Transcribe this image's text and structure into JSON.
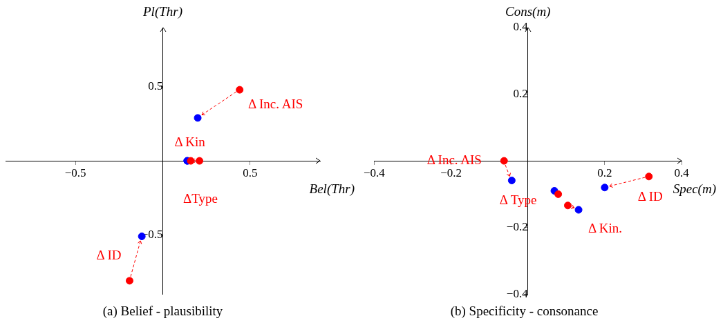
{
  "chart_data": [
    {
      "type": "scatter",
      "title": "(a) Belief - plausibility",
      "xlabel": "Bel(Thr)",
      "ylabel": "Pl(Thr)",
      "xlim": [
        -0.9,
        0.9
      ],
      "ylim": [
        -0.9,
        0.9
      ],
      "xticks": [
        -0.5,
        0.5
      ],
      "yticks": [
        -0.5,
        0.5
      ],
      "marker": "circle",
      "series": [
        {
          "color": "#ff0000",
          "x": [
            0.44,
            0.21,
            0.16,
            -0.19
          ],
          "values": [
            0.48,
            0,
            0,
            -0.81
          ]
        },
        {
          "color": "#0000ff",
          "x": [
            0.2,
            0.14,
            0.14,
            -0.12
          ],
          "values": [
            0.29,
            0,
            0,
            -0.51
          ]
        }
      ],
      "annotations": [
        {
          "text": "Δ Inc. AIS",
          "x": 0.44,
          "y": 0.48
        },
        {
          "text": "Δ Kin",
          "x": 0.21,
          "y": 0
        },
        {
          "text": "ΔType",
          "x": 0.16,
          "y": 0
        },
        {
          "text": "Δ ID",
          "x": -0.19,
          "y": -0.81
        }
      ]
    },
    {
      "type": "scatter",
      "title": "(b) Specificity - consonance",
      "xlabel": "Spec(m)",
      "ylabel": "Cons(m)",
      "xlim": [
        -0.4,
        0.4
      ],
      "ylim": [
        -0.4,
        0.4
      ],
      "xticks": [
        -0.4,
        -0.2,
        0.2,
        0.4
      ],
      "yticks": [
        -0.4,
        -0.2,
        0.2,
        0.4
      ],
      "marker": "circle",
      "series": [
        {
          "color": "#ff0000",
          "x": [
            -0.062,
            0.079,
            0.104,
            0.315
          ],
          "values": [
            0,
            -0.1,
            -0.134,
            -0.047
          ]
        },
        {
          "color": "#0000ff",
          "x": [
            -0.042,
            0.069,
            0.132,
            0.2
          ],
          "values": [
            -0.059,
            -0.09,
            -0.147,
            -0.08
          ]
        }
      ],
      "annotations": [
        {
          "text": "Δ Inc. AIS",
          "x": -0.062,
          "y": 0
        },
        {
          "text": "Δ Type",
          "x": 0.079,
          "y": -0.1
        },
        {
          "text": "Δ Kin.",
          "x": 0.104,
          "y": -0.134
        },
        {
          "text": "Δ ID",
          "x": 0.315,
          "y": -0.047
        }
      ]
    }
  ]
}
